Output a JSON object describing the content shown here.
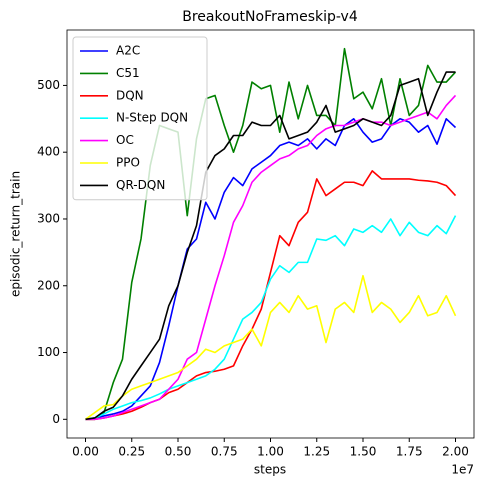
{
  "chart_data": {
    "type": "line",
    "title": "BreakoutNoFrameskip-v4",
    "xlabel": "steps",
    "ylabel": "episodic_return_train",
    "x_offset_label": "1e7",
    "legend": "upper left",
    "grid": false,
    "xlim": [
      -0.1,
      2.1
    ],
    "ylim": [
      -28,
      583
    ],
    "xticks": [
      {
        "value": 0,
        "label": "0.00"
      },
      {
        "value": 0.25,
        "label": "0.25"
      },
      {
        "value": 0.5,
        "label": "0.50"
      },
      {
        "value": 0.75,
        "label": "0.75"
      },
      {
        "value": 1,
        "label": "1.00"
      },
      {
        "value": 1.25,
        "label": "1.25"
      },
      {
        "value": 1.5,
        "label": "1.50"
      },
      {
        "value": 1.75,
        "label": "1.75"
      },
      {
        "value": 2,
        "label": "2.00"
      }
    ],
    "yticks": [
      0,
      100,
      200,
      300,
      400,
      500
    ],
    "x": [
      0,
      0.05,
      0.1,
      0.15,
      0.2,
      0.25,
      0.3,
      0.35,
      0.4,
      0.45,
      0.5,
      0.55,
      0.6,
      0.65,
      0.7,
      0.75,
      0.8,
      0.85,
      0.9,
      0.95,
      1.0,
      1.05,
      1.1,
      1.15,
      1.2,
      1.25,
      1.3,
      1.35,
      1.4,
      1.45,
      1.5,
      1.55,
      1.6,
      1.65,
      1.7,
      1.75,
      1.8,
      1.85,
      1.9,
      1.95,
      2.0
    ],
    "series": [
      {
        "name": "A2C",
        "color": "#0000ff",
        "values": [
          0,
          2,
          5,
          8,
          12,
          20,
          35,
          50,
          85,
          140,
          200,
          255,
          270,
          325,
          300,
          340,
          362,
          350,
          375,
          385,
          395,
          410,
          415,
          410,
          420,
          405,
          420,
          410,
          440,
          450,
          430,
          415,
          420,
          440,
          450,
          445,
          430,
          440,
          412,
          450,
          437
        ]
      },
      {
        "name": "C51",
        "color": "#008000",
        "values": [
          0,
          0,
          10,
          55,
          90,
          205,
          270,
          380,
          440,
          435,
          430,
          305,
          420,
          480,
          485,
          440,
          400,
          440,
          505,
          495,
          500,
          430,
          505,
          450,
          500,
          455,
          455,
          440,
          555,
          480,
          490,
          465,
          510,
          440,
          510,
          455,
          470,
          530,
          505,
          505,
          520
        ]
      },
      {
        "name": "DQN",
        "color": "#ff0000",
        "values": [
          0,
          0,
          2,
          5,
          8,
          12,
          18,
          25,
          30,
          40,
          45,
          55,
          65,
          70,
          72,
          75,
          80,
          110,
          135,
          165,
          220,
          275,
          260,
          295,
          310,
          360,
          335,
          345,
          355,
          355,
          350,
          372,
          360,
          360,
          360,
          360,
          358,
          357,
          355,
          350,
          335
        ]
      },
      {
        "name": "N-Step DQN",
        "color": "#00ffff",
        "values": [
          0,
          2,
          8,
          15,
          20,
          25,
          28,
          32,
          38,
          45,
          50,
          55,
          60,
          65,
          75,
          90,
          120,
          150,
          160,
          175,
          210,
          230,
          220,
          235,
          235,
          270,
          268,
          275,
          260,
          285,
          280,
          290,
          280,
          300,
          275,
          295,
          280,
          275,
          290,
          278,
          305
        ]
      },
      {
        "name": "OC",
        "color": "#ff00ff",
        "values": [
          0,
          0,
          2,
          5,
          10,
          15,
          20,
          25,
          30,
          45,
          60,
          90,
          100,
          150,
          200,
          245,
          295,
          320,
          355,
          370,
          380,
          390,
          395,
          405,
          410,
          425,
          435,
          440,
          440,
          445,
          450,
          445,
          445,
          440,
          445,
          450,
          455,
          460,
          450,
          470,
          485
        ]
      },
      {
        "name": "PPO",
        "color": "#ffff00",
        "values": [
          0,
          10,
          20,
          22,
          35,
          45,
          50,
          55,
          60,
          65,
          70,
          80,
          90,
          105,
          100,
          110,
          115,
          120,
          135,
          110,
          160,
          175,
          160,
          185,
          165,
          170,
          115,
          165,
          175,
          160,
          215,
          160,
          175,
          165,
          145,
          160,
          185,
          155,
          160,
          185,
          155
        ]
      },
      {
        "name": "QR-DQN",
        "color": "#000000",
        "values": [
          0,
          2,
          12,
          18,
          35,
          60,
          80,
          100,
          120,
          170,
          200,
          250,
          290,
          370,
          395,
          405,
          425,
          425,
          445,
          440,
          440,
          455,
          420,
          425,
          430,
          445,
          470,
          430,
          435,
          440,
          450,
          445,
          440,
          455,
          500,
          505,
          510,
          455,
          490,
          520,
          520
        ]
      }
    ]
  }
}
